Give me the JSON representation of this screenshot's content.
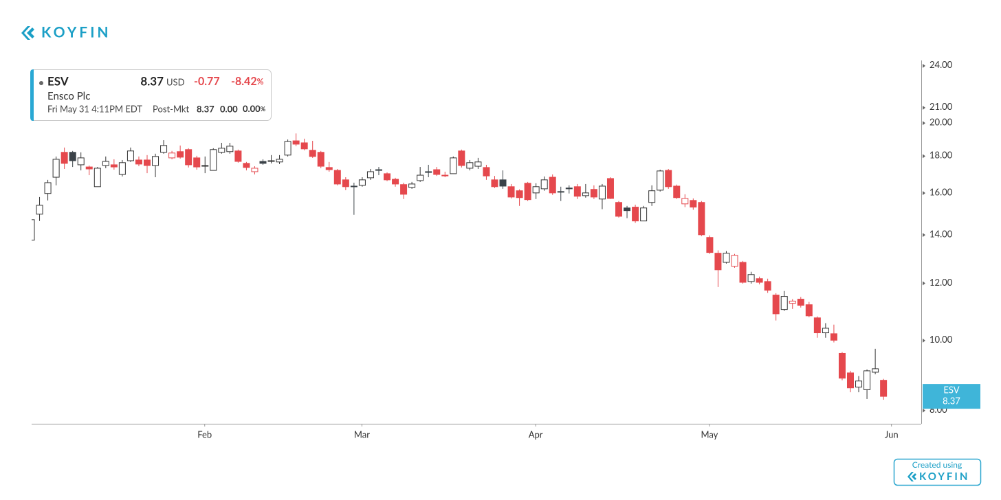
{
  "brand": "KOYFIN",
  "header": {
    "symbol": "ESV",
    "price": 8.37,
    "currency": "USD",
    "change": "-0.77",
    "change_pct": "-8.42",
    "pct_unit": "%",
    "company": "Ensco Plc",
    "timestamp": "Fri May 31 4:11PM EDT",
    "session": "Post-Mkt",
    "session_price": "8.37",
    "session_change": "0.00",
    "session_change_pct": "0.00",
    "session_pct_unit": "%"
  },
  "footer": {
    "text": "Created using",
    "brand": "KOYFIN"
  },
  "chart_data": {
    "type": "candlestick",
    "up_color": "#333333",
    "down_color": "#e5484d",
    "neutral_fill": "#3b4248",
    "ylog": true,
    "ylim": [
      7.67,
      24.42
    ],
    "yticks": [
      {
        "value": 8,
        "label": "8.00"
      },
      {
        "value": 10,
        "label": "10.00"
      },
      {
        "value": 12,
        "label": "12.00"
      },
      {
        "value": 14,
        "label": "14.00"
      },
      {
        "value": 16,
        "label": "16.00"
      },
      {
        "value": 18,
        "label": "18.00"
      },
      {
        "value": 20,
        "label": "20.00"
      },
      {
        "value": 21,
        "label": "21.00"
      },
      {
        "value": 24,
        "label": "24.00"
      }
    ],
    "xlim": [
      0,
      107.6
    ],
    "xticks": [
      {
        "value": 21,
        "label": "Feb"
      },
      {
        "value": 40,
        "label": "Mar"
      },
      {
        "value": 61,
        "label": "Apr"
      },
      {
        "value": 82,
        "label": "May"
      },
      {
        "value": 104,
        "label": "Jun"
      }
    ],
    "open": [
      13.77,
      14.96,
      15.98,
      16.83,
      18.22,
      18.22,
      17.51,
      17.39,
      16.33,
      17.47,
      17.51,
      16.98,
      17.74,
      17.78,
      17.78,
      17.47,
      18.22,
      17.9,
      18.26,
      18.38,
      17.9,
      17.43,
      17.2,
      18.22,
      18.26,
      18.3,
      17.59,
      17.13,
      17.7,
      17.7,
      17.67,
      18.06,
      18.9,
      18.78,
      18.34,
      18.22,
      17.36,
      17.2,
      16.69,
      16.36,
      16.4,
      16.8,
      17.24,
      17.02,
      16.72,
      16.44,
      16.29,
      16.65,
      17.13,
      17.24,
      16.94,
      17.02,
      18.3,
      17.32,
      17.43,
      17.36,
      16.69,
      16.69,
      16.33,
      16.12,
      16.51,
      16.01,
      16.22,
      16.83,
      16.08,
      16.26,
      16.33,
      15.87,
      16.19,
      15.7,
      16.76,
      15.53,
      15.26,
      15.3,
      14.64,
      15.53,
      16.15,
      17.2,
      16.36,
      15.46,
      15.63,
      15.53,
      13.89,
      13.21,
      12.83,
      12.67,
      12.83,
      12.07,
      12.18,
      12.07,
      11.56,
      11.04,
      11.26,
      11.41,
      11.21,
      10.75,
      10.25,
      10.22,
      9.6,
      9.02,
      8.62,
      8.55,
      9.04,
      8.81
    ],
    "high": [
      15.03,
      15.8,
      16.69,
      17.98,
      18.5,
      18.3,
      18.22,
      17.47,
      17.39,
      17.98,
      17.82,
      17.78,
      18.5,
      17.98,
      18.06,
      18.14,
      18.94,
      18.3,
      18.62,
      18.46,
      18.02,
      17.98,
      18.46,
      18.78,
      18.78,
      18.38,
      17.67,
      17.43,
      17.82,
      18.06,
      18.06,
      18.98,
      19.35,
      19.03,
      18.9,
      18.3,
      17.67,
      17.28,
      16.83,
      16.54,
      16.83,
      17.28,
      17.39,
      17.09,
      16.8,
      16.54,
      16.58,
      17.39,
      17.51,
      17.39,
      17.13,
      17.98,
      18.38,
      17.78,
      17.9,
      17.51,
      16.9,
      17.2,
      16.47,
      16.19,
      16.58,
      16.51,
      16.87,
      16.98,
      16.33,
      16.4,
      16.47,
      16.47,
      16.4,
      16.47,
      16.83,
      15.6,
      15.36,
      15.42,
      15.36,
      16.4,
      17.24,
      17.28,
      16.44,
      15.94,
      15.73,
      15.6,
      13.98,
      13.33,
      13.3,
      13.18,
      12.89,
      12.45,
      12.26,
      12.18,
      11.63,
      11.71,
      11.41,
      11.49,
      11.31,
      10.8,
      10.57,
      10.52,
      9.64,
      9.08,
      8.93,
      9.12,
      9.74,
      8.85
    ],
    "low": [
      13.24,
      14.64,
      15.63,
      16.4,
      17.28,
      17.39,
      17.2,
      16.94,
      16.33,
      17.32,
      17.24,
      16.87,
      17.67,
      17.43,
      17.05,
      16.83,
      18.14,
      17.82,
      17.86,
      17.36,
      17.24,
      17.05,
      17.2,
      18.14,
      18.14,
      17.63,
      17.2,
      16.98,
      17.51,
      17.59,
      17.55,
      17.98,
      18.58,
      18.34,
      17.9,
      17.32,
      17.13,
      16.4,
      16.15,
      14.93,
      16.33,
      16.69,
      16.94,
      16.62,
      16.33,
      15.7,
      16.22,
      16.58,
      16.83,
      16.9,
      16.83,
      17.02,
      17.36,
      17.2,
      17.28,
      16.69,
      16.26,
      16.22,
      15.73,
      15.36,
      15.6,
      15.7,
      16.12,
      15.91,
      15.6,
      15.98,
      15.7,
      15.77,
      15.7,
      15.2,
      15.7,
      14.8,
      14.77,
      14.55,
      14.64,
      15.36,
      16.08,
      16.22,
      15.7,
      15.3,
      15.17,
      13.95,
      13.18,
      11.86,
      12.78,
      12.61,
      11.99,
      11.99,
      11.96,
      11.64,
      10.66,
      10.99,
      11.06,
      11.11,
      10.77,
      10.09,
      10.09,
      9.94,
      8.81,
      8.48,
      8.48,
      8.3,
      8.98,
      8.28
    ],
    "close": [
      14.7,
      15.39,
      16.54,
      17.82,
      17.59,
      17.74,
      17.9,
      17.28,
      17.32,
      17.7,
      17.39,
      17.63,
      18.3,
      17.55,
      17.47,
      17.98,
      18.62,
      18.18,
      17.94,
      17.51,
      17.39,
      17.47,
      18.38,
      18.46,
      18.58,
      17.7,
      17.36,
      17.32,
      17.59,
      17.74,
      17.82,
      18.86,
      18.7,
      18.42,
      17.98,
      17.43,
      17.24,
      16.47,
      16.33,
      16.34,
      16.69,
      17.13,
      17.2,
      16.69,
      16.47,
      15.94,
      16.47,
      16.94,
      17.09,
      16.98,
      16.9,
      17.9,
      17.47,
      17.63,
      17.67,
      16.9,
      16.33,
      16.36,
      15.8,
      15.77,
      15.67,
      16.33,
      16.69,
      16.01,
      16.05,
      16.22,
      15.84,
      16.01,
      15.8,
      16.36,
      15.73,
      14.86,
      15.13,
      14.64,
      15.26,
      16.12,
      17.17,
      16.33,
      15.77,
      15.73,
      15.3,
      14.01,
      13.24,
      12.53,
      13.21,
      13.12,
      12.04,
      12.34,
      12.04,
      11.74,
      10.89,
      11.51,
      11.34,
      11.19,
      10.82,
      10.25,
      10.4,
      10.01,
      8.87,
      8.6,
      8.79,
      9.08,
      9.14,
      8.37
    ]
  }
}
